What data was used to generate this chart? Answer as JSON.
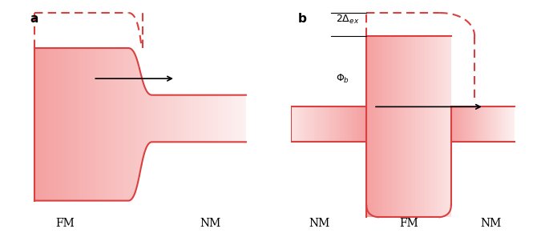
{
  "red_solid": "#d94040",
  "red_fill": "#f5a0a0",
  "red_fill_light": "#fce0e0",
  "red_dashed": "#d94040",
  "black": "#000000",
  "bg": "#ffffff",
  "panel_a_label": "a",
  "panel_b_label": "b",
  "fm_label": "FM",
  "nm_label": "NM",
  "delta_label": "2Δex",
  "phi_label": "Φb"
}
